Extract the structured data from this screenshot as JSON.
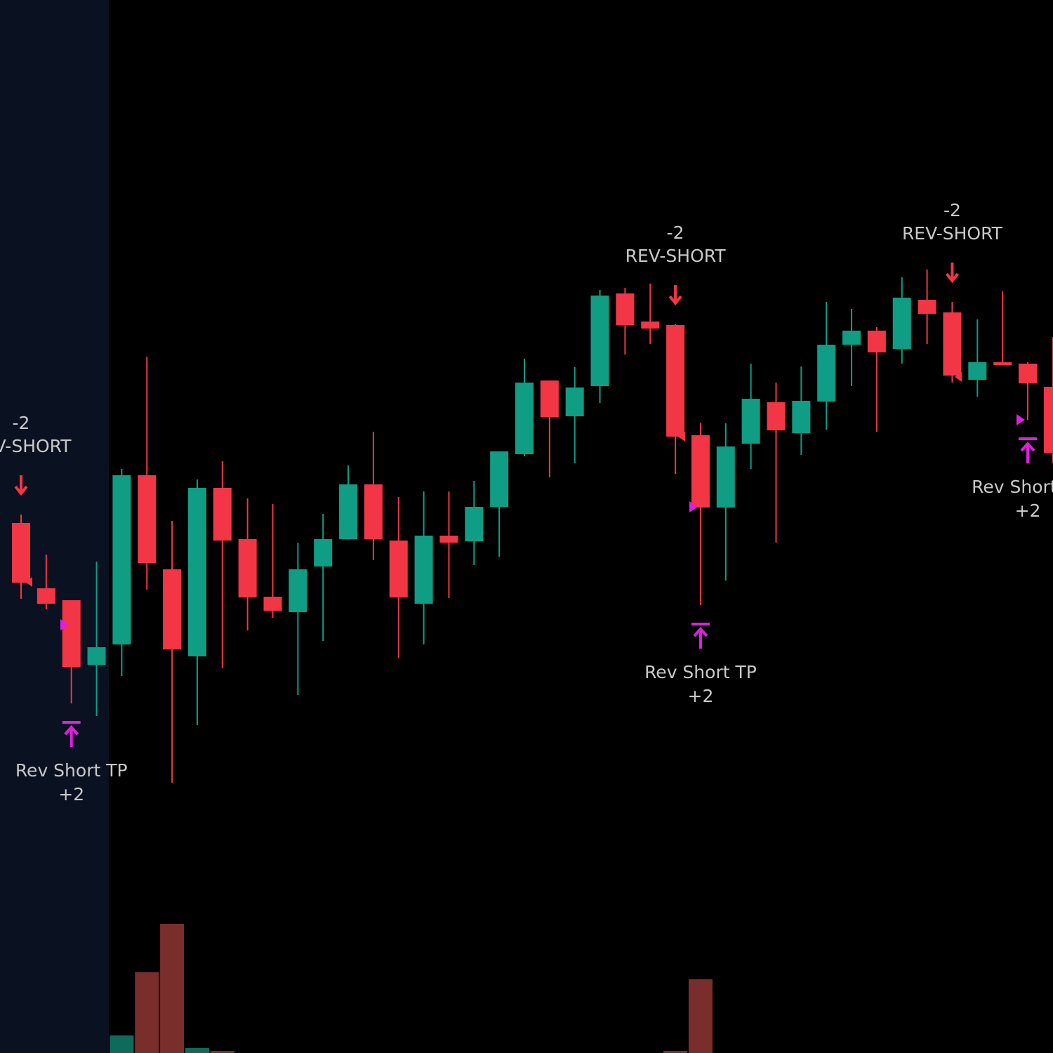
{
  "chart_data": {
    "type": "candlestick",
    "categories": [
      null,
      null,
      null,
      null,
      null,
      null,
      null,
      null,
      null,
      null,
      null,
      null,
      null,
      null,
      null,
      null,
      null,
      null,
      null,
      null,
      null,
      null,
      null,
      null,
      null,
      null,
      null,
      null,
      null,
      null,
      null,
      null,
      null,
      null,
      null,
      null,
      null,
      null,
      null,
      null,
      null,
      null
    ],
    "open": [
      755,
      662,
      645,
      553,
      582,
      823,
      689,
      565,
      805,
      732,
      650,
      628,
      693,
      732,
      810,
      730,
      640,
      737,
      729,
      778,
      853,
      958,
      907,
      950,
      1082,
      1042,
      1037,
      880,
      777,
      868,
      927,
      883,
      928,
      1009,
      1029,
      1003,
      1073,
      1055,
      959,
      984,
      982,
      949
    ],
    "high": [
      767,
      710,
      645,
      700,
      832,
      992,
      758,
      817,
      843,
      790,
      782,
      727,
      768,
      837,
      885,
      792,
      800,
      800,
      815,
      857,
      989,
      958,
      977,
      1087,
      1090,
      1096,
      1038,
      898,
      897,
      982,
      955,
      978,
      1070,
      1060,
      1034,
      1105,
      1116,
      1070,
      1045,
      1085,
      984,
      1020
    ],
    "low": [
      647,
      632,
      498,
      480,
      537,
      660,
      385,
      467,
      548,
      602,
      620,
      510,
      587,
      732,
      702,
      563,
      582,
      648,
      695,
      707,
      850,
      820,
      840,
      926,
      995,
      1010,
      825,
      638,
      673,
      832,
      727,
      852,
      888,
      950,
      885,
      982,
      1010,
      955,
      935,
      980,
      902,
      840
    ],
    "close": [
      670,
      640,
      550,
      578,
      823,
      698,
      575,
      805,
      730,
      649,
      630,
      689,
      732,
      810,
      732,
      649,
      737,
      727,
      778,
      857,
      955,
      906,
      948,
      1079,
      1037,
      1032,
      878,
      777,
      864,
      932,
      887,
      929,
      1009,
      1029,
      998,
      1076,
      1053,
      965,
      984,
      980,
      954,
      855
    ],
    "up_color": "#0f9d84",
    "down_color": "#f23645",
    "ylim": [
      0,
      1500
    ],
    "volume": [
      null,
      null,
      null,
      null,
      25,
      115,
      184,
      7,
      3,
      null,
      null,
      null,
      null,
      null,
      null,
      null,
      null,
      null,
      null,
      null,
      null,
      null,
      null,
      null,
      null,
      null,
      3,
      105,
      null,
      null,
      null,
      null,
      null,
      null,
      null,
      null,
      null,
      null,
      null,
      null,
      null,
      null
    ],
    "volume_up_color": "#0e6b5c",
    "volume_down_color": "#7a2e2b",
    "y2lim": [
      0,
      1500
    ],
    "signals": [
      {
        "value": -2,
        "label": "REV-SHORT"
      },
      {
        "value": -2,
        "label": "REV-SHORT"
      },
      {
        "value": -2,
        "label": "REV-SHORT"
      }
    ],
    "take_profits": [
      {
        "label": "Rev Short TP",
        "value": "+2"
      },
      {
        "label": "Rev Short TP",
        "value": "+2"
      },
      {
        "label": "Rev Short TP",
        "value": "+2"
      }
    ]
  }
}
